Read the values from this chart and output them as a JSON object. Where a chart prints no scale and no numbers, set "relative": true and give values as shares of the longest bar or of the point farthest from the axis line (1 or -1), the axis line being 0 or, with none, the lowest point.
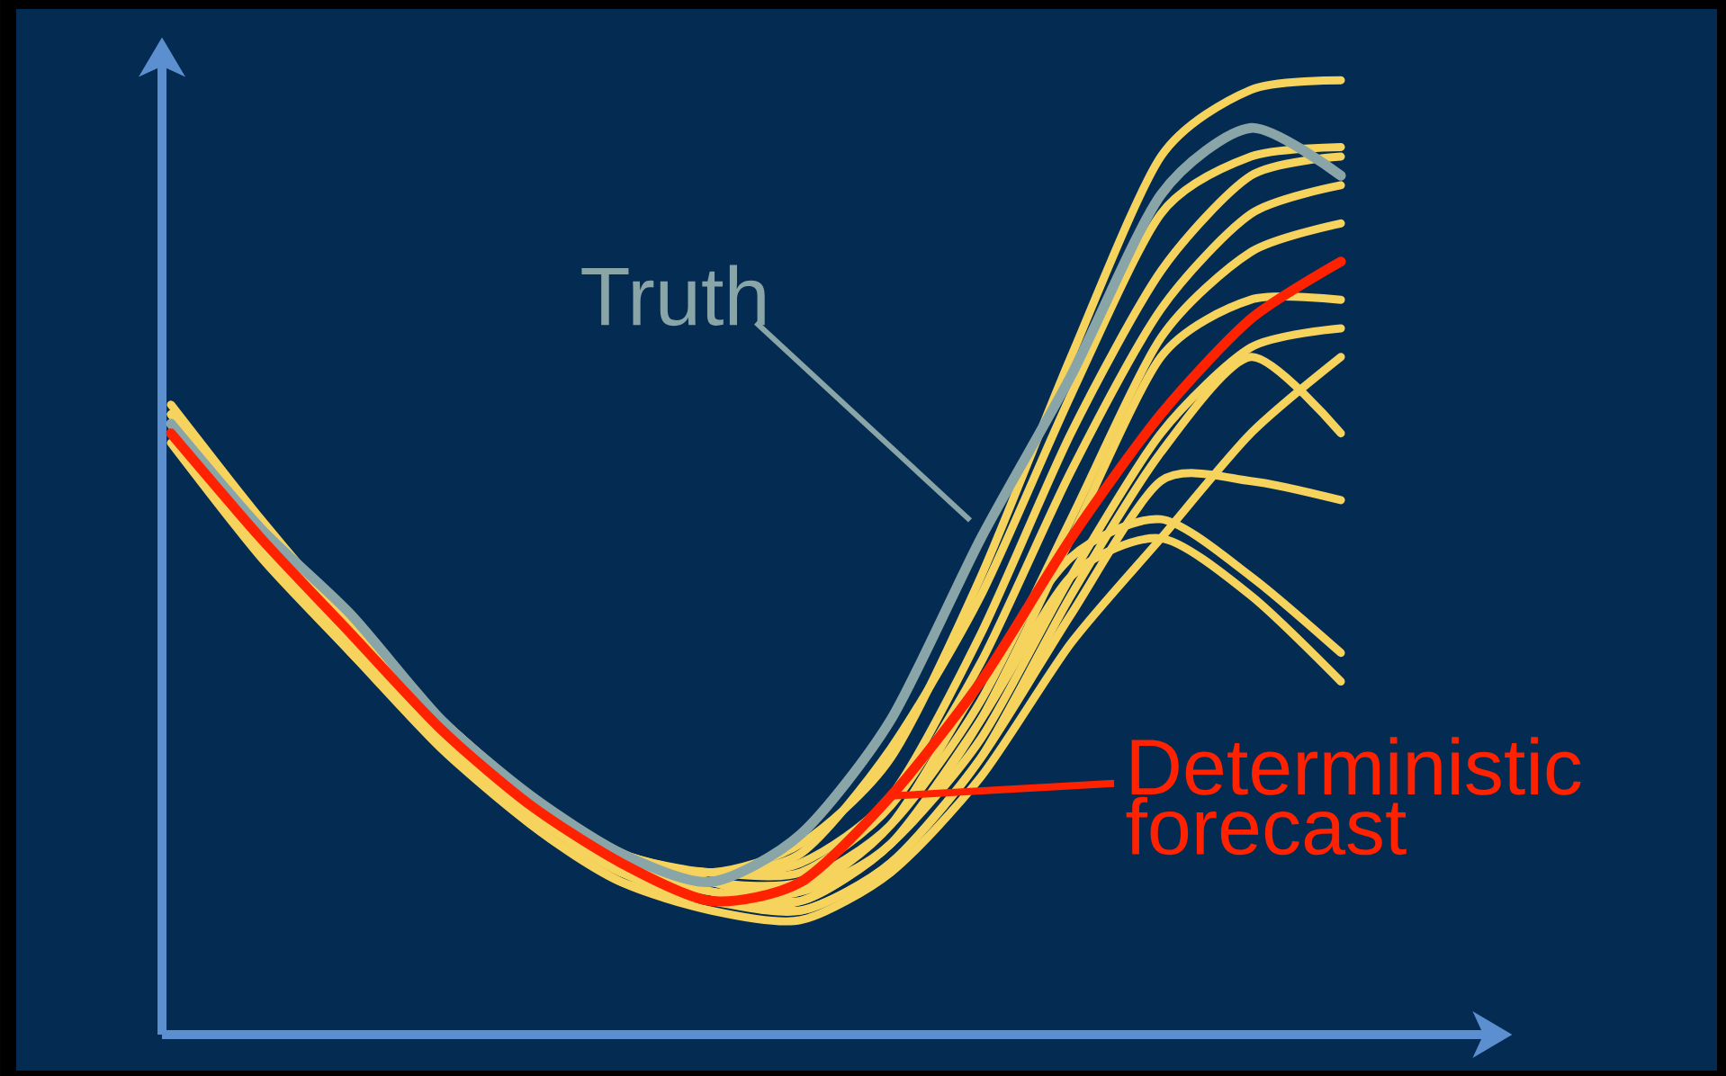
{
  "chart_data": {
    "type": "line",
    "relative": true,
    "categories": [
      null,
      null,
      null,
      null,
      null,
      null,
      null,
      null,
      null,
      null,
      null,
      null,
      null,
      null
    ],
    "series": [
      {
        "color": "#f5d35c",
        "values": [
          0.66,
          0.54,
          0.43,
          0.33,
          0.25,
          0.19,
          0.17,
          0.2,
          0.29,
          0.48,
          0.71,
          0.92,
          0.99,
          1.0
        ]
      },
      {
        "color": "#f5d35c",
        "values": [
          0.65,
          0.53,
          0.43,
          0.33,
          0.25,
          0.19,
          0.17,
          0.19,
          0.3,
          0.46,
          0.67,
          0.86,
          0.92,
          0.93
        ]
      },
      {
        "color": "#f5d35c",
        "values": [
          0.64,
          0.53,
          0.42,
          0.33,
          0.25,
          0.19,
          0.17,
          0.18,
          0.25,
          0.42,
          0.63,
          0.8,
          0.9,
          0.92
        ]
      },
      {
        "color": "#f5d35c",
        "values": [
          0.64,
          0.52,
          0.42,
          0.32,
          0.24,
          0.18,
          0.17,
          0.17,
          0.24,
          0.39,
          0.59,
          0.76,
          0.86,
          0.89
        ]
      },
      {
        "color": "#f5d35c",
        "values": [
          0.64,
          0.53,
          0.42,
          0.33,
          0.25,
          0.19,
          0.16,
          0.16,
          0.22,
          0.35,
          0.54,
          0.73,
          0.82,
          0.85
        ]
      },
      {
        "color": "#f5d35c",
        "values": [
          0.63,
          0.52,
          0.41,
          0.32,
          0.24,
          0.18,
          0.16,
          0.15,
          0.2,
          0.33,
          0.52,
          0.71,
          0.77,
          0.77
        ]
      },
      {
        "color": "#f5d35c",
        "values": [
          0.64,
          0.52,
          0.42,
          0.32,
          0.24,
          0.18,
          0.16,
          0.14,
          0.2,
          0.31,
          0.48,
          0.63,
          0.72,
          0.74
        ]
      },
      {
        "color": "#f5d35c",
        "values": [
          0.63,
          0.51,
          0.41,
          0.31,
          0.23,
          0.17,
          0.15,
          0.13,
          0.18,
          0.29,
          0.46,
          0.61,
          0.71,
          0.63
        ]
      },
      {
        "color": "#f5d35c",
        "values": [
          0.63,
          0.51,
          0.4,
          0.31,
          0.22,
          0.16,
          0.14,
          0.13,
          0.18,
          0.29,
          0.44,
          0.58,
          0.58,
          0.56
        ]
      },
      {
        "color": "#f5d35c",
        "values": [
          0.64,
          0.52,
          0.41,
          0.31,
          0.23,
          0.17,
          0.14,
          0.14,
          0.2,
          0.33,
          0.48,
          0.52,
          0.46,
          0.37
        ]
      },
      {
        "color": "#f5d35c",
        "values": [
          0.65,
          0.53,
          0.42,
          0.32,
          0.24,
          0.18,
          0.15,
          0.15,
          0.22,
          0.37,
          0.5,
          0.54,
          0.48,
          0.4
        ]
      },
      {
        "color": "#f5d35c",
        "values": [
          0.62,
          0.5,
          0.4,
          0.3,
          0.22,
          0.16,
          0.13,
          0.12,
          0.17,
          0.27,
          0.41,
          0.52,
          0.63,
          0.71
        ]
      },
      {
        "name": "Truth",
        "color": "#8aa5a8",
        "values": [
          0.64,
          0.53,
          0.44,
          0.33,
          0.25,
          0.19,
          0.16,
          0.21,
          0.33,
          0.52,
          0.69,
          0.88,
          0.95,
          0.9
        ]
      },
      {
        "name": "Deterministic forecast",
        "color": "#ff2200",
        "values": [
          0.63,
          0.52,
          0.42,
          0.32,
          0.24,
          0.18,
          0.14,
          0.16,
          0.25,
          0.37,
          0.52,
          0.65,
          0.75,
          0.81
        ]
      }
    ]
  }
}
